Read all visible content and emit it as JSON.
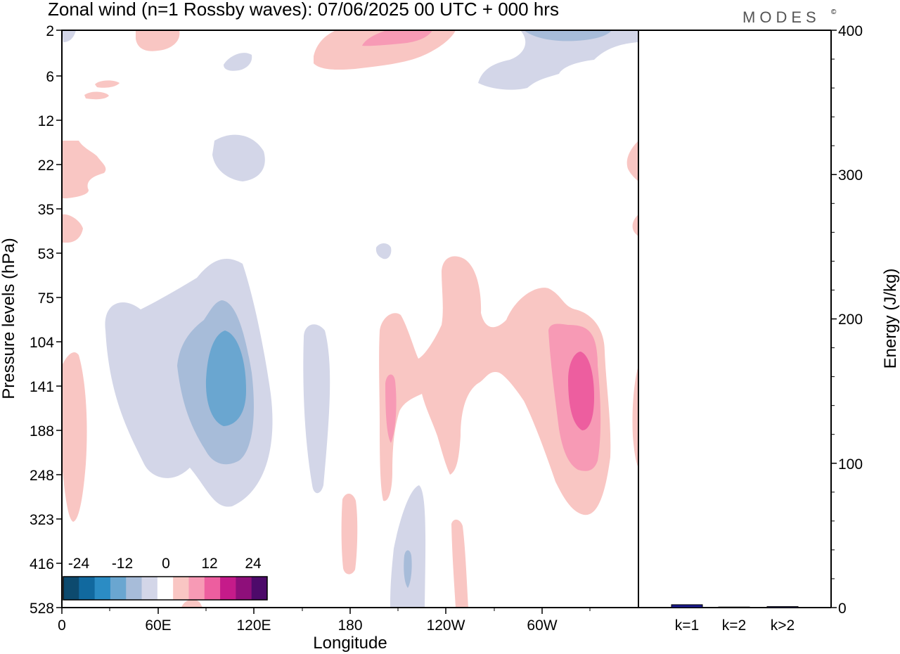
{
  "title": "Zonal wind (n=1 Rossby waves):  07/06/2025  00 UTC  + 000 hrs",
  "logo": {
    "text": "MODES",
    "mark": "©"
  },
  "chart_data": [
    {
      "type": "heatmap",
      "subtype": "filled-contour",
      "xlabel": "Longitude",
      "ylabel": "Pressure levels (hPa)",
      "x_ticks": [
        "0",
        "60E",
        "120E",
        "180",
        "120W",
        "60W"
      ],
      "x_tick_values_deg": [
        0,
        60,
        120,
        180,
        240,
        300
      ],
      "xlim_deg": [
        0,
        360
      ],
      "y_ticks": [
        "2",
        "6",
        "12",
        "22",
        "35",
        "53",
        "75",
        "104",
        "141",
        "188",
        "248",
        "323",
        "416",
        "528"
      ],
      "y_axis": "pressure levels (top = 2 hPa, bottom = 528 hPa)",
      "colorbar": {
        "labels": [
          "-24",
          "-12",
          "0",
          "12",
          "24"
        ],
        "levels": [
          -30,
          -25,
          -20,
          -15,
          -10,
          -5,
          5,
          10,
          15,
          20,
          25,
          30
        ],
        "colors": [
          "#0d4a6e",
          "#11699f",
          "#2b8cc4",
          "#6aa6d0",
          "#a7bcd9",
          "#d3d6e8",
          "#ffffff",
          "#f9c6c3",
          "#f79ab5",
          "#ed5e9f",
          "#c51b8a",
          "#8e0f7a",
          "#4d0a6a"
        ]
      },
      "features": [
        {
          "sign": "negative",
          "center_lon_deg": 107,
          "center_level": "141",
          "min_value": -15
        },
        {
          "sign": "positive",
          "center_lon_deg": 323,
          "center_level": "141",
          "max_value": 15
        },
        {
          "sign": "positive",
          "center_lon_deg": 197,
          "center_level": "141",
          "max_value": 10
        }
      ]
    },
    {
      "type": "bar",
      "categories": [
        "k=1",
        "k=2",
        "k>2"
      ],
      "values": [
        2,
        0.4,
        0.7
      ],
      "ylabel": "Energy (J/kg)",
      "ylim": [
        0,
        400
      ],
      "y_ticks": [
        "0",
        "100",
        "200",
        "300",
        "400"
      ],
      "y_axis_side": "right",
      "bar_color": "#1a1a8c"
    }
  ]
}
